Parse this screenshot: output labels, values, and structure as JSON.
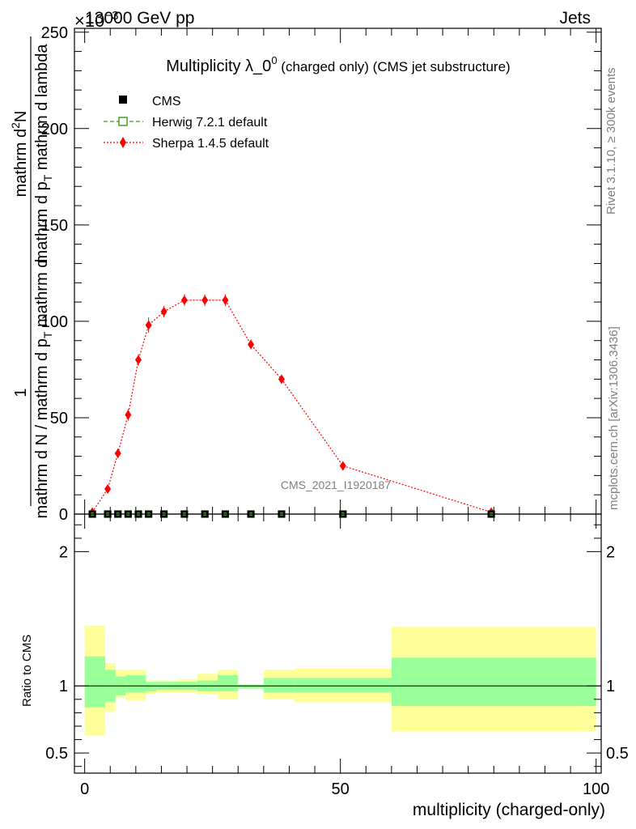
{
  "header": {
    "left": "13000 GeV pp",
    "right": "Jets",
    "scale": "×10",
    "scale_exp": "−3"
  },
  "side_labels": {
    "rivet": "Rivet 3.1.10, ≥ 300k events",
    "mcplots": "mcplots.cern.ch [arXiv:1306.3436]"
  },
  "watermark": "CMS_2021_I1920187",
  "chart_data": [
    {
      "type": "scatter",
      "title_main": "Multiplicity λ_0",
      "title_sup": "0",
      "title_paren": "(charged only) (CMS jet substructure)",
      "ylabel": {
        "numerator": "1",
        "denominator": "mathrm d N / mathrm d p",
        "denominator_sub": "T",
        "denominator_tail": "mathrm d",
        "numerator2": "mathrm d",
        "numerator2_sup": "2",
        "numerator2_tail": "N",
        "denominator2": "mathrm d p",
        "denominator2_sub": "T",
        "denominator2_tail": " mathrm d lambda"
      },
      "xlim": [
        -2,
        101
      ],
      "ylim": [
        0,
        252
      ],
      "y_scale_note": "×10^-3",
      "yticks": [
        0,
        50,
        100,
        150,
        200,
        250
      ],
      "yticklabels": [
        "0",
        "50",
        "100",
        "150",
        "200",
        "250"
      ],
      "legend_position": "top-left",
      "legend": [
        {
          "name": "CMS",
          "marker": "square-filled",
          "color": "#000000"
        },
        {
          "name": "Herwig 7.2.1 default",
          "marker": "square-open",
          "color": "#3a9a1a",
          "line": "dashed"
        },
        {
          "name": "Sherpa 1.4.5 default",
          "marker": "diamond",
          "color": "#ff0000",
          "line": "dotted"
        }
      ],
      "series": [
        {
          "name": "CMS",
          "x": [
            1.5,
            4.5,
            6.5,
            8.5,
            10.5,
            12.5,
            15.5,
            19.5,
            23.5,
            27.5,
            32.5,
            38.5,
            50.5,
            79.5
          ],
          "y": [
            0,
            0,
            0,
            0,
            0,
            0,
            0,
            0,
            0,
            0,
            0,
            0,
            0,
            0
          ]
        },
        {
          "name": "Herwig 7.2.1 default",
          "x": [
            1.5,
            4.5,
            6.5,
            8.5,
            10.5,
            12.5,
            15.5,
            19.5,
            23.5,
            27.5,
            32.5,
            38.5,
            50.5,
            79.5
          ],
          "y": [
            0,
            0,
            0,
            0,
            0,
            0,
            0,
            0,
            0,
            0,
            0,
            0,
            0,
            0
          ]
        },
        {
          "name": "Sherpa 1.4.5 default",
          "x": [
            1.5,
            4.5,
            6.5,
            8.5,
            10.5,
            12.5,
            15.5,
            19.5,
            23.5,
            27.5,
            32.5,
            38.5,
            50.5,
            79.5
          ],
          "y": [
            1,
            13,
            31.5,
            51.5,
            80,
            98,
            105,
            111,
            111,
            111,
            88,
            70,
            25,
            1
          ],
          "err": [
            0.5,
            1.5,
            2.5,
            3,
            3,
            4,
            3,
            3,
            3,
            3,
            2.5,
            2,
            1,
            0.5
          ]
        }
      ]
    },
    {
      "type": "area",
      "ylabel": "Ratio to CMS",
      "xlabel": "multiplicity (charged-only)",
      "xlim": [
        -2,
        101
      ],
      "ylim": [
        0.35,
        2.28
      ],
      "xticks": [
        0,
        50,
        100
      ],
      "xticklabels": [
        "0",
        "50",
        "100"
      ],
      "yticks": [
        0.5,
        1,
        2
      ],
      "yticklabels": [
        "0.5",
        "1",
        "2"
      ],
      "reference_line": 1,
      "bands": {
        "edges": [
          0,
          4,
          6,
          8,
          12,
          14,
          18,
          22,
          26,
          30,
          35,
          41,
          60,
          100
        ],
        "green_lo": [
          0.84,
          0.88,
          0.93,
          0.95,
          0.96,
          0.97,
          0.97,
          0.96,
          0.96,
          0.98,
          0.95,
          0.95,
          0.85
        ],
        "green_hi": [
          1.22,
          1.12,
          1.07,
          1.08,
          1.03,
          1.03,
          1.03,
          1.04,
          1.08,
          1.01,
          1.06,
          1.06,
          1.21
        ],
        "yellow_lo": [
          0.63,
          0.81,
          0.91,
          0.89,
          0.94,
          0.95,
          0.95,
          0.94,
          0.9,
          0.98,
          0.9,
          0.88,
          0.66
        ],
        "yellow_hi": [
          1.45,
          1.17,
          1.12,
          1.12,
          1.04,
          1.04,
          1.05,
          1.09,
          1.12,
          1.01,
          1.12,
          1.13,
          1.44
        ]
      },
      "band_colors": {
        "stat": "#99ff99",
        "total": "#ffff99"
      }
    }
  ]
}
